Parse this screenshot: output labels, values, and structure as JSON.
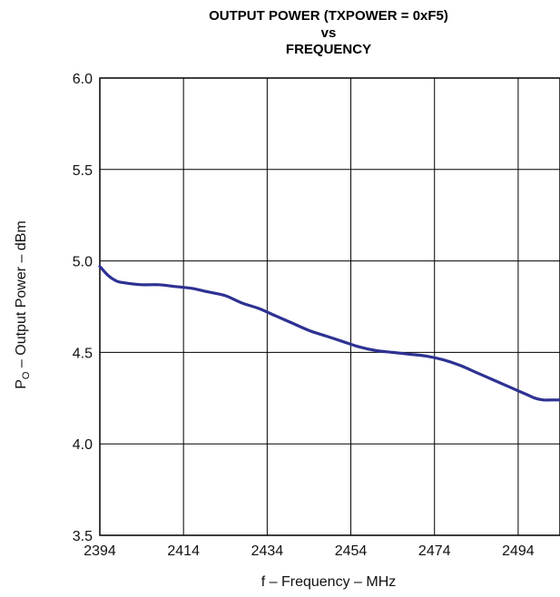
{
  "chart_data": {
    "type": "line",
    "title_lines": [
      "OUTPUT POWER (TXPOWER = 0xF5)",
      "vs",
      "FREQUENCY"
    ],
    "xlabel": "f – Frequency – MHz",
    "ylabel": {
      "main": "P",
      "subscript": "O",
      "rest": " – Output Power – dBm"
    },
    "xlim": [
      2394,
      2504
    ],
    "ylim": [
      3.5,
      6.0
    ],
    "x_ticks": [
      2394,
      2414,
      2434,
      2454,
      2474,
      2494
    ],
    "y_ticks": [
      "3.5",
      "4.0",
      "4.5",
      "5.0",
      "5.5",
      "6.0"
    ],
    "grid": true,
    "series_color": "#2e3192",
    "series": [
      {
        "x": [
          2394,
          2396,
          2398,
          2400,
          2404,
          2408,
          2412,
          2416,
          2420,
          2424,
          2428,
          2432,
          2436,
          2440,
          2444,
          2448,
          2452,
          2456,
          2460,
          2464,
          2468,
          2472,
          2476,
          2480,
          2484,
          2488,
          2492,
          2496,
          2498,
          2500,
          2502,
          2504
        ],
        "y": [
          4.97,
          4.92,
          4.89,
          4.88,
          4.87,
          4.87,
          4.86,
          4.85,
          4.83,
          4.81,
          4.77,
          4.74,
          4.7,
          4.66,
          4.62,
          4.59,
          4.56,
          4.53,
          4.51,
          4.5,
          4.49,
          4.48,
          4.46,
          4.43,
          4.39,
          4.35,
          4.31,
          4.27,
          4.25,
          4.24,
          4.24,
          4.24
        ]
      }
    ]
  }
}
